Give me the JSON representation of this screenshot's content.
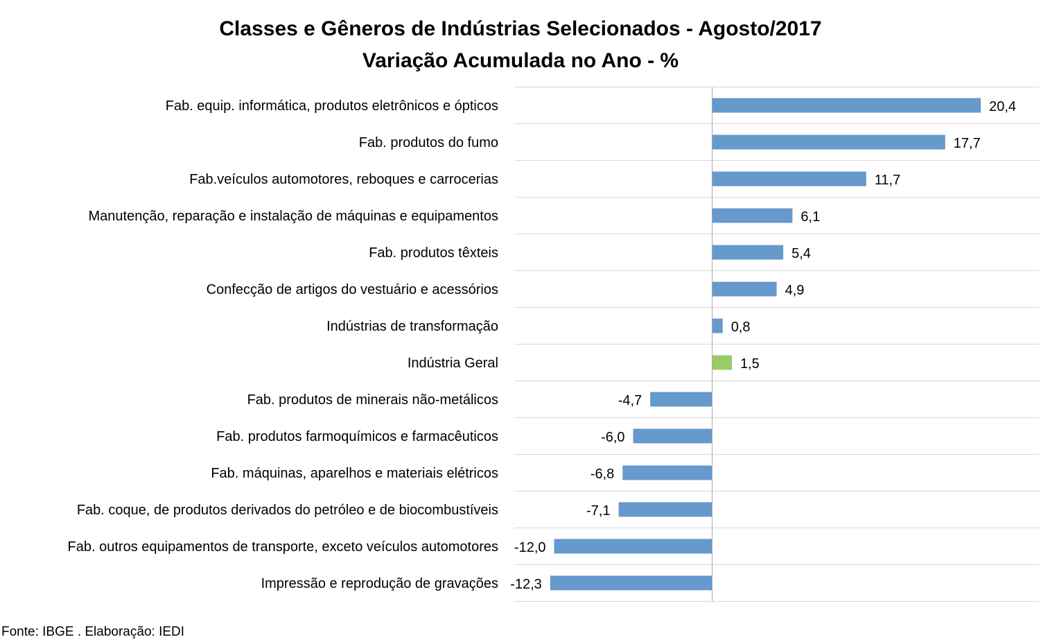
{
  "chart_data": {
    "type": "bar",
    "orientation": "horizontal",
    "title": "Classes e Gêneros de Indústrias Selecionados - Agosto/2017",
    "subtitle": "Variação Acumulada no Ano - %",
    "categories": [
      "Fab. equip. informática, produtos eletrônicos e ópticos",
      "Fab. produtos do fumo",
      "Fab.veículos automotores, reboques e carrocerias",
      "Manutenção, reparação e instalação de máquinas e equipamentos",
      "Fab. produtos têxteis",
      "Confecção de artigos do vestuário e acessórios",
      "Indústrias de transformação",
      "Indústria Geral",
      "Fab. produtos de minerais não-metálicos",
      "Fab. produtos farmoquímicos e farmacêuticos",
      "Fab. máquinas, aparelhos e materiais elétricos",
      "Fab. coque, de produtos derivados do petróleo e de biocombustíveis",
      "Fab. outros equipamentos de transporte, exceto veículos automotores",
      "Impressão e reprodução de gravações"
    ],
    "values": [
      20.4,
      17.7,
      11.7,
      6.1,
      5.4,
      4.9,
      0.8,
      1.5,
      -4.7,
      -6.0,
      -6.8,
      -7.1,
      -12.0,
      -12.3
    ],
    "value_labels": [
      "20,4",
      "17,7",
      "11,7",
      "6,1",
      "5,4",
      "4,9",
      "0,8",
      "1,5",
      "-4,7",
      "-6,0",
      "-6,8",
      "-7,1",
      "-12,0",
      "-12,3"
    ],
    "highlight_index": 7,
    "xlim": [
      -15,
      25
    ],
    "grid": "horizontal",
    "xlabel": "",
    "ylabel": "",
    "colors": {
      "bar": "#6699CC",
      "highlight": "#99CC66",
      "grid": "#D9D9D9",
      "axis": "#A6A6A6"
    }
  },
  "source": "Fonte: IBGE . Elaboração: IEDI"
}
